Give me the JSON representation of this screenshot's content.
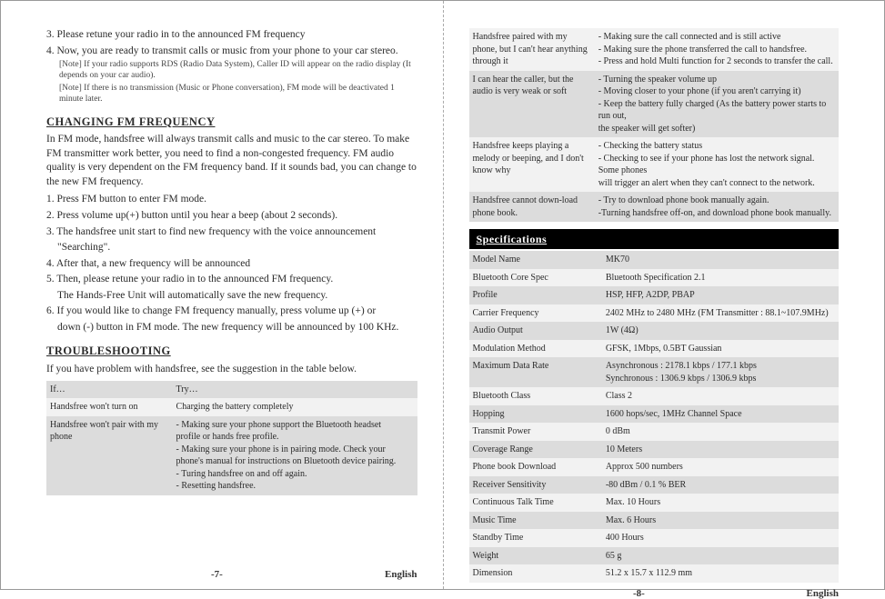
{
  "left": {
    "steps_top": [
      "3. Please retune your radio in to the announced FM frequency",
      "4. Now, you are ready to transmit calls or music from your phone to your car stereo."
    ],
    "notes_top": [
      "[Note] If your radio supports RDS (Radio Data System), Caller ID will appear on the radio display (It depends on your car audio).",
      "[Note] If there is no transmission (Music or Phone conversation), FM mode will be deactivated 1 minute later."
    ],
    "section1_title": "CHANGING FM FREQUENCY",
    "section1_para": "In FM mode, handsfree will always transmit calls and music to the car stereo. To make FM transmitter work better, you need to find a non-congested frequency. FM audio quality is very dependent on the FM frequency band. If it sounds bad, you can change to the new FM frequency.",
    "section1_steps": [
      {
        "t": "1. Press FM button to enter FM mode."
      },
      {
        "t": "2. Press volume up(+) button until you hear a beep (about 2 seconds)."
      },
      {
        "t": "3. The handsfree unit start to find new frequency with the voice announcement",
        "s": "\"Searching\"."
      },
      {
        "t": "4. After that, a new frequency will be announced"
      },
      {
        "t": "5. Then, please retune your radio in to the announced FM frequency.",
        "s": "The Hands-Free Unit will automatically save the new frequency."
      },
      {
        "t": "6. If you would like to change FM frequency manually, press volume up (+) or",
        "s": "down (-) button in FM mode. The new frequency will be announced by 100 KHz."
      }
    ],
    "section2_title": "TROUBLESHOOTING",
    "section2_para": "If you have problem with handsfree, see the suggestion in the table below.",
    "trouble_header": {
      "c1": "If…",
      "c2": "Try…"
    },
    "trouble_rows": [
      {
        "shade": "light",
        "c1": "Handsfree won't turn on",
        "c2": "Charging the battery completely"
      },
      {
        "shade": "dark",
        "c1": "Handsfree won't pair with my phone",
        "c2": "- Making sure your phone support the Bluetooth headset\n  profile or hands free profile.\n- Making sure your phone is in pairing mode. Check your\n  phone's manual for instructions on Bluetooth device pairing.\n- Turing handsfree on and off again.\n- Resetting handsfree."
      }
    ],
    "footer_page": "-7-",
    "footer_lang": "English"
  },
  "right": {
    "trouble_rows": [
      {
        "shade": "light",
        "c1": "Handsfree paired with my phone, but I can't hear anything through it",
        "c2": "- Making sure the call connected and is still active\n- Making sure the phone transferred the call to handsfree.\n- Press and hold Multi function for 2 seconds to transfer the call."
      },
      {
        "shade": "dark",
        "c1": "I can hear the caller, but the audio is very weak or soft",
        "c2": "- Turning the speaker volume up\n- Moving closer to your phone (if you aren't carrying it)\n- Keep the battery fully charged (As the battery power starts to run out,\n  the speaker will get softer)"
      },
      {
        "shade": "light",
        "c1": "Handsfree keeps playing a melody or beeping, and I don't know why",
        "c2": "- Checking the battery status\n- Checking to see if your phone has lost the network signal. Some phones\n  will trigger an alert when they can't connect to the network."
      },
      {
        "shade": "dark",
        "c1": "Handsfree cannot down-load phone book.",
        "c2": "- Try to download phone book manually again.\n-Turning handsfree off-on, and download phone book manually."
      }
    ],
    "spec_title": "Specifications",
    "spec_rows": [
      {
        "l": "Model Name",
        "r": "MK70"
      },
      {
        "l": "Bluetooth Core Spec",
        "r": "Bluetooth Specification 2.1"
      },
      {
        "l": "Profile",
        "r": "HSP, HFP, A2DP, PBAP"
      },
      {
        "l": "Carrier Frequency",
        "r": "2402 MHz to 2480 MHz (FM Transmitter  : 88.1~107.9MHz)"
      },
      {
        "l": "Audio Output",
        "r": "1W (4Ω)"
      },
      {
        "l": "Modulation Method",
        "r": "GFSK, 1Mbps, 0.5BT Gaussian"
      },
      {
        "l": "Maximum Data Rate",
        "r": "Asynchronous : 2178.1 kbps / 177.1 kbps\nSynchronous : 1306.9 kbps / 1306.9 kbps"
      },
      {
        "l": "Bluetooth Class",
        "r": "Class 2"
      },
      {
        "l": "Hopping",
        "r": "1600 hops/sec, 1MHz Channel Space"
      },
      {
        "l": "Transmit Power",
        "r": "0 dBm"
      },
      {
        "l": "Coverage Range",
        "r": "10 Meters"
      },
      {
        "l": "Phone book Download",
        "r": "Approx 500 numbers"
      },
      {
        "l": "Receiver Sensitivity",
        "r": "-80 dBm / 0.1 % BER"
      },
      {
        "l": "Continuous Talk Time",
        "r": "Max. 10 Hours"
      },
      {
        "l": "Music Time",
        "r": "Max. 6 Hours"
      },
      {
        "l": "Standby Time",
        "r": "400 Hours"
      },
      {
        "l": "Weight",
        "r": "65 g"
      },
      {
        "l": "Dimension",
        "r": "51.2 x 15.7 x 112.9 mm"
      }
    ],
    "footer_page": "-8-",
    "footer_lang": "English"
  }
}
